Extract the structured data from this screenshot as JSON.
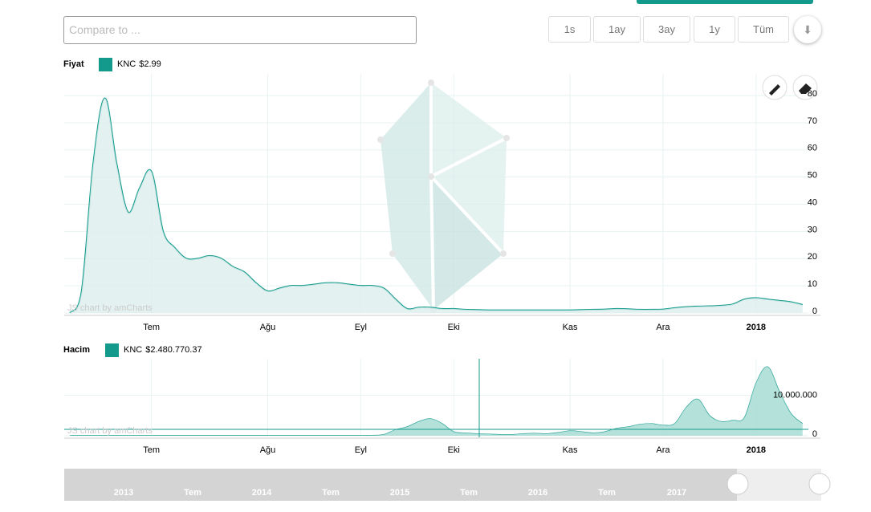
{
  "controls": {
    "compare_placeholder": "Compare to ...",
    "periods": [
      "1s",
      "1ay",
      "3ay",
      "1y",
      "Tüm"
    ]
  },
  "chart_data": [
    {
      "type": "area",
      "title": "Fiyat",
      "watermark": "JS chart by amCharts",
      "categories": [
        null,
        null,
        null,
        null,
        null,
        null,
        null,
        "Tem",
        null,
        null,
        null,
        null,
        null,
        null,
        null,
        null,
        null,
        "Ağu",
        null,
        null,
        null,
        null,
        null,
        null,
        null,
        "Eyl",
        null,
        null,
        null,
        null,
        null,
        null,
        null,
        "Eki",
        null,
        null,
        null,
        null,
        null,
        null,
        null,
        null,
        null,
        "Kas",
        null,
        null,
        null,
        null,
        null,
        null,
        null,
        "Ara",
        null,
        null,
        null,
        null,
        null,
        null,
        null,
        "2018",
        null,
        null,
        null,
        null
      ],
      "series": [
        {
          "name": "KNC",
          "legend_value": "$2.99",
          "color": "#139a8c",
          "values": [
            0,
            8,
            55,
            79,
            55,
            37,
            46,
            52,
            30,
            24,
            20,
            20,
            21,
            20,
            17,
            15,
            11,
            8,
            9,
            10,
            10,
            10.5,
            11,
            11,
            10.5,
            10,
            10,
            9,
            5,
            1.5,
            2,
            2,
            1.5,
            1.5,
            1.2,
            1.1,
            1,
            1,
            1,
            1,
            1,
            1,
            1,
            1,
            1.1,
            1.2,
            1.3,
            1.5,
            1.4,
            1.2,
            1.2,
            1.3,
            1.8,
            2.2,
            2.4,
            2.5,
            2.7,
            3.2,
            5,
            5.5,
            5,
            4.5,
            4,
            3
          ]
        }
      ],
      "ylim": [
        0,
        88
      ],
      "yticks": [
        0,
        10,
        20,
        30,
        40,
        50,
        60,
        70,
        80
      ],
      "grid": true
    },
    {
      "type": "area",
      "title": "Hacim",
      "watermark": "JS chart by amCharts",
      "categories": [
        null,
        null,
        null,
        null,
        null,
        null,
        null,
        "Tem",
        null,
        null,
        null,
        null,
        null,
        null,
        null,
        null,
        null,
        "Ağu",
        null,
        null,
        null,
        null,
        null,
        null,
        null,
        "Eyl",
        null,
        null,
        null,
        null,
        null,
        null,
        null,
        "Eki",
        null,
        null,
        null,
        null,
        null,
        null,
        null,
        null,
        null,
        "Kas",
        null,
        null,
        null,
        null,
        null,
        null,
        null,
        "Ara",
        null,
        null,
        null,
        null,
        null,
        null,
        null,
        "2018",
        null,
        null,
        null,
        null
      ],
      "series": [
        {
          "name": "KNC",
          "legend_value": "$2.480.770.37",
          "color": "#139a8c",
          "values": [
            100000,
            100000,
            100000,
            100000,
            100000,
            100000,
            100000,
            100000,
            100000,
            100000,
            100000,
            100000,
            100000,
            100000,
            100000,
            100000,
            100000,
            100000,
            100000,
            100000,
            100000,
            100000,
            100000,
            100000,
            100000,
            100000,
            100000,
            300000,
            1500000,
            2200000,
            3500000,
            4200000,
            3000000,
            1000000,
            700000,
            500000,
            400000,
            300000,
            300000,
            500000,
            600000,
            500000,
            800000,
            1200000,
            1000000,
            700000,
            1000000,
            1800000,
            2200000,
            2800000,
            3000000,
            2600000,
            3000000,
            7000000,
            9000000,
            5000000,
            3500000,
            3800000,
            4500000,
            13000000,
            17000000,
            11000000,
            5500000,
            3000000
          ]
        }
      ],
      "ylim": [
        0,
        19000000
      ],
      "yticks": [
        0,
        {
          "value": 10000000,
          "label": "10.000.000"
        }
      ],
      "grid": true
    }
  ],
  "navigator": {
    "labels": [
      "2013",
      "Tem",
      "2014",
      "Tem",
      "2015",
      "Tem",
      "2016",
      "Tem",
      "2017"
    ]
  }
}
